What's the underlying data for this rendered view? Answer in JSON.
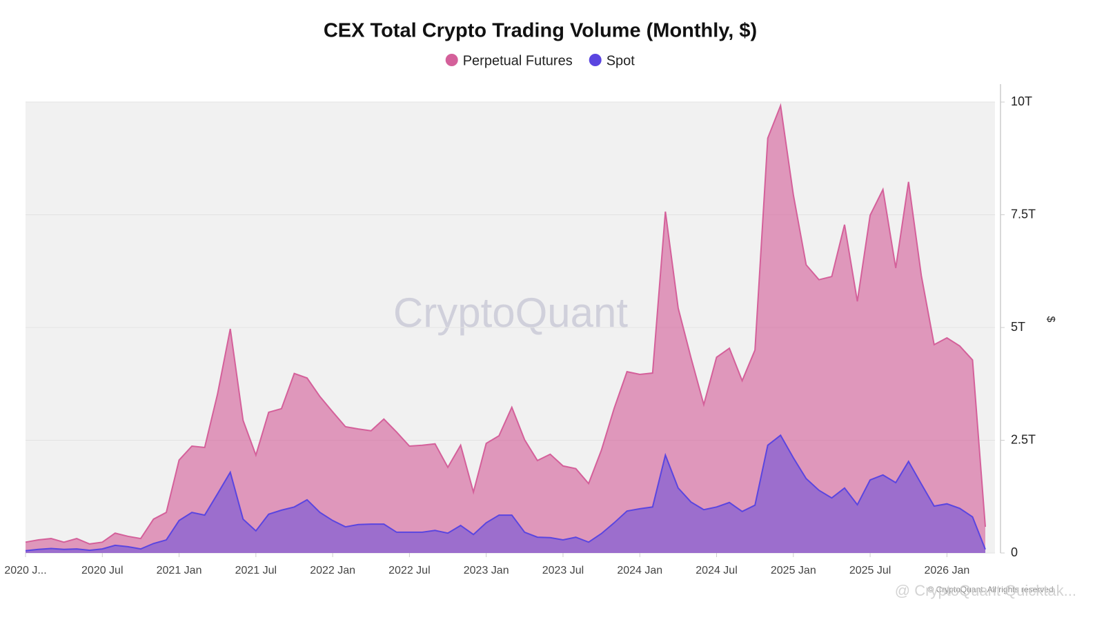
{
  "chart_data": {
    "type": "area",
    "title": "CEX Total Crypto Trading Volume (Monthly, $)",
    "y_label": "$",
    "watermark": "CryptoQuant",
    "footer": "© CryptoQuant. All rights reserved.",
    "overlay_text": "@ CryptoQuant Quicktak...",
    "categories": [
      "2020 J...",
      null,
      null,
      null,
      null,
      null,
      "2020 Jul",
      null,
      null,
      null,
      null,
      null,
      "2021 Jan",
      null,
      null,
      null,
      null,
      null,
      "2021 Jul",
      null,
      null,
      null,
      null,
      null,
      "2022 Jan",
      null,
      null,
      null,
      null,
      null,
      "2022 Jul",
      null,
      null,
      null,
      null,
      null,
      "2023 Jan",
      null,
      null,
      null,
      null,
      null,
      "2023 Jul",
      null,
      null,
      null,
      null,
      null,
      "2024 Jan",
      null,
      null,
      null,
      null,
      null,
      "2024 Jul",
      null,
      null,
      null,
      null,
      null,
      "2025 Jan",
      null,
      null,
      null,
      null,
      null,
      "2025 Jul",
      null,
      null,
      null,
      null,
      null,
      "2026 Jan",
      null,
      null,
      null
    ],
    "series": [
      {
        "name": "Perpetual Futures",
        "color": "#d4609a",
        "values": [
          240000000000.0,
          290000000000.0,
          320000000000.0,
          240000000000.0,
          320000000000.0,
          200000000000.0,
          240000000000.0,
          440000000000.0,
          370000000000.0,
          320000000000.0,
          750000000000.0,
          900000000000.0,
          2060000000000.0,
          2370000000000.0,
          2340000000000.0,
          3520000000000.0,
          4970000000000.0,
          2940000000000.0,
          2170000000000.0,
          3120000000000.0,
          3200000000000.0,
          3980000000000.0,
          3880000000000.0,
          3470000000000.0,
          3130000000000.0,
          2800000000000.0,
          2750000000000.0,
          2710000000000.0,
          2970000000000.0,
          2680000000000.0,
          2370000000000.0,
          2390000000000.0,
          2420000000000.0,
          1900000000000.0,
          2390000000000.0,
          1350000000000.0,
          2430000000000.0,
          2600000000000.0,
          3230000000000.0,
          2510000000000.0,
          2050000000000.0,
          2190000000000.0,
          1930000000000.0,
          1870000000000.0,
          1540000000000.0,
          2280000000000.0,
          3210000000000.0,
          4020000000000.0,
          3960000000000.0,
          3990000000000.0,
          7570000000000.0,
          5430000000000.0,
          4330000000000.0,
          3290000000000.0,
          4340000000000.0,
          4540000000000.0,
          3820000000000.0,
          4500000000000.0,
          9200000000000.0,
          9920000000000.0,
          7940000000000.0,
          6390000000000.0,
          6060000000000.0,
          6130000000000.0,
          7280000000000.0,
          5580000000000.0,
          7490000000000.0,
          8060000000000.0,
          6320000000000.0,
          8230000000000.0,
          6150000000000.0,
          4620000000000.0,
          4770000000000.0,
          4590000000000.0,
          4280000000000.0,
          580000000000.0
        ]
      },
      {
        "name": "Spot",
        "color": "#5a45e0",
        "values": [
          50000000000.0,
          80000000000.0,
          100000000000.0,
          80000000000.0,
          90000000000.0,
          60000000000.0,
          90000000000.0,
          170000000000.0,
          140000000000.0,
          90000000000.0,
          210000000000.0,
          290000000000.0,
          720000000000.0,
          900000000000.0,
          840000000000.0,
          1310000000000.0,
          1790000000000.0,
          750000000000.0,
          490000000000.0,
          860000000000.0,
          950000000000.0,
          1020000000000.0,
          1180000000000.0,
          900000000000.0,
          720000000000.0,
          580000000000.0,
          630000000000.0,
          640000000000.0,
          640000000000.0,
          460000000000.0,
          460000000000.0,
          460000000000.0,
          500000000000.0,
          440000000000.0,
          610000000000.0,
          410000000000.0,
          670000000000.0,
          840000000000.0,
          840000000000.0,
          460000000000.0,
          350000000000.0,
          340000000000.0,
          290000000000.0,
          350000000000.0,
          240000000000.0,
          430000000000.0,
          670000000000.0,
          930000000000.0,
          980000000000.0,
          1020000000000.0,
          2170000000000.0,
          1440000000000.0,
          1130000000000.0,
          960000000000.0,
          1020000000000.0,
          1120000000000.0,
          920000000000.0,
          1060000000000.0,
          2390000000000.0,
          2610000000000.0,
          2110000000000.0,
          1650000000000.0,
          1390000000000.0,
          1220000000000.0,
          1440000000000.0,
          1070000000000.0,
          1620000000000.0,
          1730000000000.0,
          1560000000000.0,
          2030000000000.0,
          1530000000000.0,
          1040000000000.0,
          1090000000000.0,
          990000000000.0,
          800000000000.0,
          80000000000.0
        ]
      }
    ],
    "ylim": [
      0,
      10000000000000.0
    ],
    "yticks": [
      0,
      {
        "value": 2500000000000.0,
        "label": "2.5T"
      },
      {
        "value": 5000000000000.0,
        "label": "5T"
      },
      {
        "value": 7500000000000.0,
        "label": "7.5T"
      },
      {
        "value": 10000000000000.0,
        "label": "10T"
      }
    ],
    "grid": true,
    "legend": "top"
  }
}
